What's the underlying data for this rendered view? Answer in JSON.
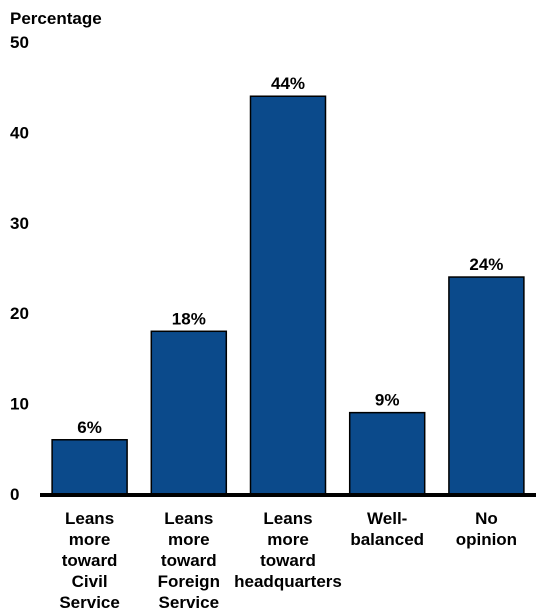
{
  "chart_data": {
    "type": "bar",
    "ylabel": "Percentage",
    "xlabel": "",
    "ylim": [
      0,
      50
    ],
    "yticks": [
      0,
      10,
      20,
      30,
      40,
      50
    ],
    "categories": [
      "Leans more toward Civil Service",
      "Leans more toward Foreign Service",
      "Leans more toward headquarters",
      "Well-balanced",
      "No opinion"
    ],
    "category_lines": [
      [
        "Leans",
        "more",
        "toward",
        "Civil",
        "Service"
      ],
      [
        "Leans",
        "more",
        "toward",
        "Foreign",
        "Service"
      ],
      [
        "Leans",
        "more",
        "toward",
        "headquarters"
      ],
      [
        "Well-",
        "balanced"
      ],
      [
        "No",
        "opinion"
      ]
    ],
    "values": [
      6,
      18,
      44,
      9,
      24
    ],
    "data_labels": [
      "6%",
      "18%",
      "44%",
      "9%",
      "24%"
    ],
    "grid": false,
    "colors": {
      "bar": "#0b4a8b",
      "bar_edge": "#000000",
      "axis": "#000000"
    }
  }
}
